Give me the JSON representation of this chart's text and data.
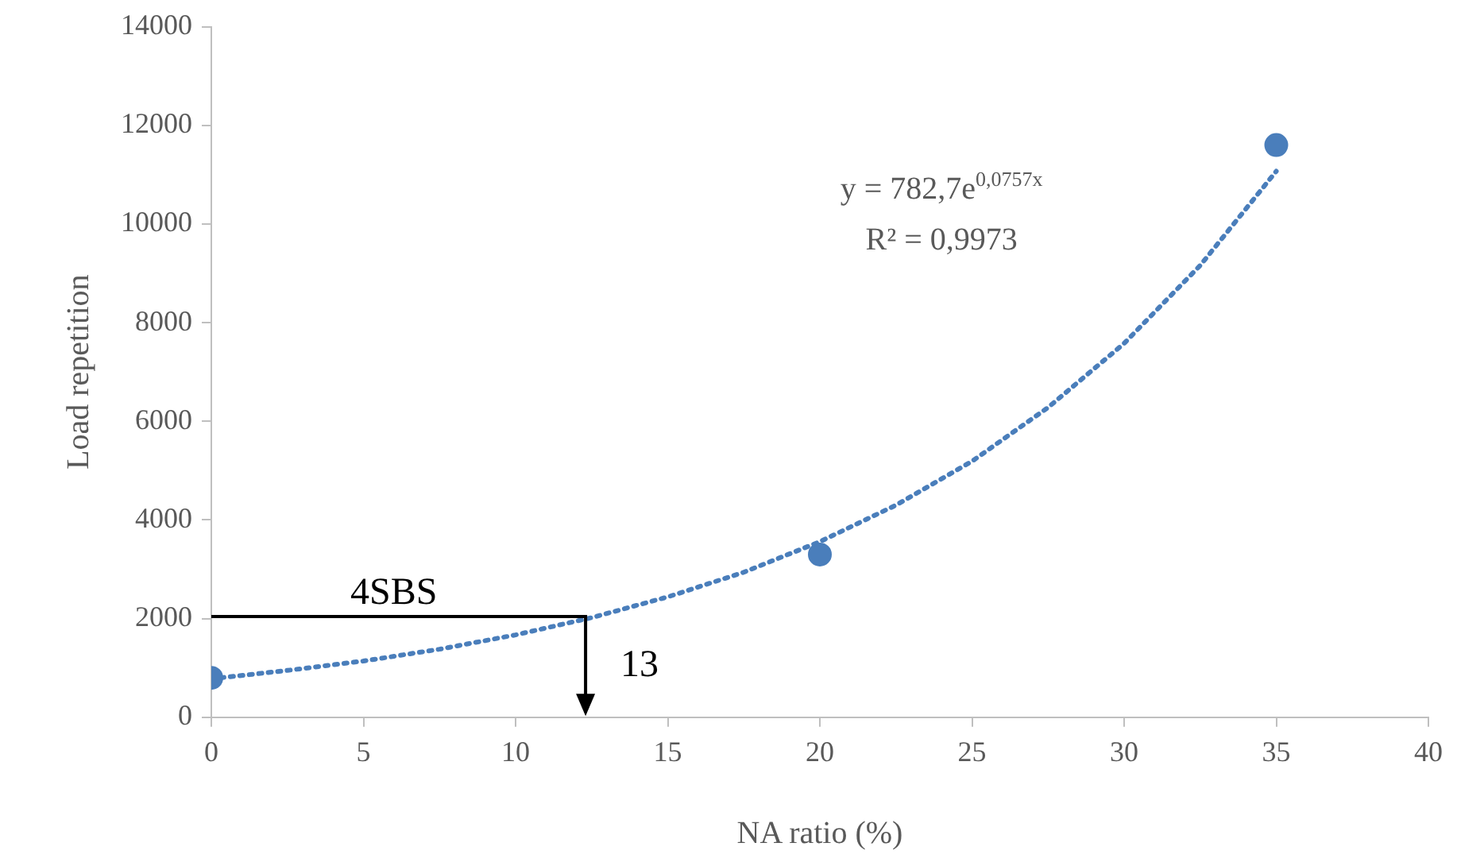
{
  "chart_data": {
    "type": "scatter",
    "xlabel": "NA ratio (%)",
    "ylabel": "Load repetition",
    "xlim": [
      0,
      40
    ],
    "xticks": [
      0,
      5,
      10,
      15,
      20,
      25,
      30,
      35,
      40
    ],
    "ylim": [
      0,
      14000
    ],
    "yticks": [
      0,
      2000,
      4000,
      6000,
      8000,
      10000,
      12000,
      14000
    ],
    "grid": false,
    "legend": false,
    "series": [
      {
        "color": "#4a7ebb",
        "marker": "circle",
        "x": [
          0,
          20,
          35
        ],
        "values": [
          800,
          3300,
          11600
        ]
      },
      {
        "type": "line",
        "color": "#4a7ebb",
        "marker": "none",
        "line_style": "dotted",
        "x": [
          0,
          2.5,
          5,
          7.5,
          10,
          12.5,
          15,
          17.5,
          20,
          22.5,
          25,
          27.5,
          30,
          32.5,
          35
        ],
        "values": [
          780,
          950,
          1140,
          1380,
          1670,
          2020,
          2440,
          2940,
          3560,
          4300,
          5190,
          6280,
          7580,
          9160,
          11070
        ]
      }
    ],
    "annotations": [
      "y = 782,7e$^{0,0757x}$",
      "R² = 0,9973",
      "4SBS",
      "13"
    ]
  }
}
